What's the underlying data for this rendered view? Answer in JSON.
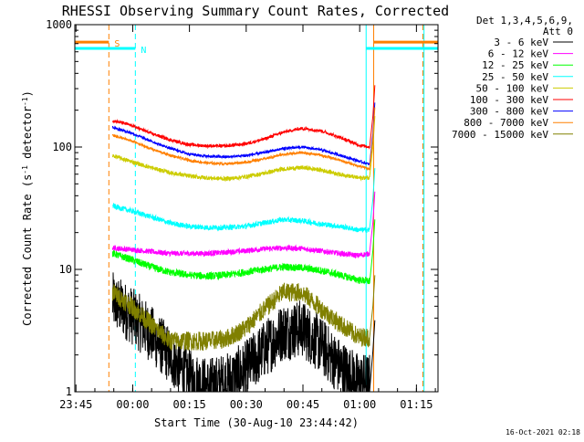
{
  "chart_data": {
    "type": "line",
    "title": "RHESSI Observing Summary Count Rates, Corrected",
    "xlabel": "Start Time (30-Aug-10 23:44:42)",
    "ylabel_main": "Corrected Count Rate (s",
    "ylabel_sup1": "-1",
    "ylabel_mid": " detector",
    "ylabel_sup2": "-1",
    "ylabel_end": ")",
    "x_unit": "minutes since 23:44:42",
    "xlim": [
      0,
      96
    ],
    "ylim": [
      1,
      1000
    ],
    "yscale": "log",
    "x_ticks": [
      {
        "label": "23:45",
        "x": 0.3
      },
      {
        "label": "00:00",
        "x": 15.3
      },
      {
        "label": "00:15",
        "x": 30.3
      },
      {
        "label": "00:30",
        "x": 45.3
      },
      {
        "label": "00:45",
        "x": 60.3
      },
      {
        "label": "01:00",
        "x": 75.3
      },
      {
        "label": "01:15",
        "x": 90.3
      }
    ],
    "y_ticks": [
      {
        "label": "1",
        "y": 1
      },
      {
        "label": "10",
        "y": 10
      },
      {
        "label": "100",
        "y": 100
      },
      {
        "label": "1000",
        "y": 1000
      }
    ],
    "legend_header": [
      "Det 1,3,4,5,6,9,",
      "Att 0"
    ],
    "legend_position": "top-right",
    "footer_date": "16-Oct-2021 02:18",
    "flags": [
      {
        "label": "S",
        "x_start": 0,
        "x_end": 9,
        "x_resume": 79,
        "y": 720,
        "color": "#ff8000"
      },
      {
        "label": "N",
        "x_start": 0,
        "x_end": 16,
        "x_resume": 77,
        "y": 640,
        "color": "#00ffff"
      }
    ],
    "vlines": [
      {
        "x": 9,
        "color": "#ff8000",
        "style": "dashed"
      },
      {
        "x": 16,
        "color": "#00ffff",
        "style": "dashed"
      },
      {
        "x": 77,
        "color": "#00ffff",
        "style": "solid"
      },
      {
        "x": 79,
        "color": "#ff8000",
        "style": "solid"
      },
      {
        "x": 92,
        "color": "#ff8000",
        "style": "dashed"
      },
      {
        "x": 92.3,
        "color": "#00ffff",
        "style": "solid"
      }
    ],
    "x": [
      10,
      15,
      20,
      25,
      30,
      35,
      40,
      45,
      50,
      55,
      60,
      65,
      70,
      75,
      78
    ],
    "series": [
      {
        "name": "3 - 6 keV",
        "color": "#000000",
        "noise": 0.55,
        "values": [
          5.5,
          4.2,
          3.0,
          2.0,
          1.3,
          1.1,
          1.2,
          1.5,
          2.2,
          3.1,
          3.3,
          2.4,
          1.6,
          1.2,
          1.2
        ]
      },
      {
        "name": "6 - 12 keV",
        "color": "#ff00ff",
        "noise": 0.05,
        "values": [
          15,
          14.5,
          14,
          13.5,
          13.5,
          13.5,
          13.8,
          14.2,
          14.7,
          15.0,
          14.8,
          14.2,
          13.5,
          13.0,
          13.5
        ]
      },
      {
        "name": "12 - 25 keV",
        "color": "#00ff00",
        "noise": 0.07,
        "values": [
          13.5,
          12,
          10.5,
          9.5,
          9,
          8.8,
          9,
          9.5,
          10,
          10.5,
          10.3,
          9.8,
          9,
          8.2,
          8
        ]
      },
      {
        "name": "25 - 50 keV",
        "color": "#00ffff",
        "noise": 0.05,
        "values": [
          33,
          30,
          27,
          24,
          22.5,
          22,
          22,
          22.5,
          24,
          25.5,
          25,
          23.5,
          22.5,
          21,
          21
        ]
      },
      {
        "name": "50 - 100 keV",
        "color": "#cccc00",
        "noise": 0.04,
        "values": [
          85,
          76,
          68,
          62,
          58,
          56,
          55,
          57,
          61,
          66,
          68,
          65,
          60,
          56,
          56
        ]
      },
      {
        "name": "100 - 300 keV",
        "color": "#ff0000",
        "noise": 0.03,
        "values": [
          165,
          150,
          130,
          115,
          105,
          102,
          102,
          106,
          116,
          132,
          142,
          136,
          120,
          104,
          100
        ]
      },
      {
        "name": "300 - 800 keV",
        "color": "#0000ff",
        "noise": 0.025,
        "values": [
          145,
          130,
          112,
          98,
          88,
          84,
          83,
          85,
          90,
          97,
          100,
          95,
          86,
          77,
          72
        ]
      },
      {
        "name": "800 - 7000 keV",
        "color": "#ff8000",
        "noise": 0.025,
        "values": [
          125,
          112,
          97,
          86,
          78,
          74,
          73,
          75,
          80,
          87,
          90,
          86,
          78,
          70,
          66
        ]
      },
      {
        "name": "7000 - 15000 keV",
        "color": "#808000",
        "noise": 0.18,
        "values": [
          6.5,
          5,
          3.6,
          2.6,
          2.6,
          2.6,
          2.7,
          3.3,
          4.7,
          6.5,
          6.5,
          4.8,
          3.6,
          2.8,
          2.8
        ]
      }
    ]
  }
}
